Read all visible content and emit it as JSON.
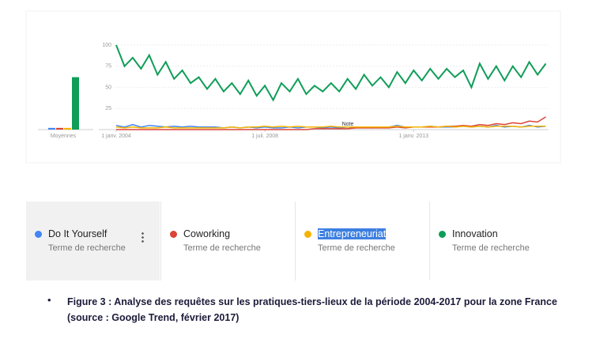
{
  "chart_data": [
    {
      "type": "bar",
      "x_label": "Moyennes",
      "categories": [
        null,
        null,
        null,
        null
      ],
      "values": [
        2,
        2,
        2,
        62
      ],
      "colors": [
        "#4285f4",
        "#db4437",
        "#f4b400",
        "#0f9d58"
      ],
      "ylim": [
        0,
        100
      ]
    },
    {
      "type": "line",
      "annotation": "Note",
      "legend_subtitle": "Terme de recherche",
      "grid": true,
      "ylim": [
        0,
        100
      ],
      "yticks": [
        25,
        50,
        75,
        100
      ],
      "xlim": [
        "2004-01",
        "2017-02"
      ],
      "xticks": [
        {
          "value": "2004-01",
          "label": "1 janv. 2004"
        },
        {
          "value": "2008-07",
          "label": "1 juil. 2008"
        },
        {
          "value": "2013-01",
          "label": "1 janv. 2013"
        }
      ],
      "x": [
        "2004-01",
        "2004-04",
        "2004-07",
        "2004-10",
        "2005-01",
        "2005-04",
        "2005-07",
        "2005-10",
        "2006-01",
        "2006-04",
        "2006-07",
        "2006-10",
        "2007-01",
        "2007-04",
        "2007-07",
        "2007-10",
        "2008-01",
        "2008-04",
        "2008-07",
        "2008-10",
        "2009-01",
        "2009-04",
        "2009-07",
        "2009-10",
        "2010-01",
        "2010-04",
        "2010-07",
        "2010-10",
        "2011-01",
        "2011-04",
        "2011-07",
        "2011-10",
        "2012-01",
        "2012-04",
        "2012-07",
        "2012-10",
        "2013-01",
        "2013-04",
        "2013-07",
        "2013-10",
        "2014-01",
        "2014-04",
        "2014-07",
        "2014-10",
        "2015-01",
        "2015-04",
        "2015-07",
        "2015-10",
        "2016-01",
        "2016-04",
        "2016-07",
        "2016-10",
        "2017-01"
      ],
      "series": [
        {
          "name": "Do It Yourself",
          "color": "#4285f4",
          "values": [
            5,
            3,
            6,
            3,
            5,
            4,
            3,
            4,
            3,
            4,
            3,
            3,
            3,
            2,
            3,
            2,
            3,
            2,
            3,
            2,
            2,
            3,
            2,
            3,
            3,
            2,
            3,
            2,
            3,
            2,
            3,
            2,
            3,
            3,
            5,
            3,
            3,
            3,
            4,
            3,
            3,
            3,
            4,
            3,
            4,
            3,
            5,
            3,
            4,
            3,
            5,
            3,
            4
          ]
        },
        {
          "name": "Coworking",
          "color": "#db4437",
          "values": [
            0,
            0,
            0,
            0,
            0,
            0,
            0,
            0,
            0,
            0,
            0,
            0,
            0,
            0,
            0,
            0,
            0,
            0,
            0,
            0,
            0,
            0,
            0,
            0,
            1,
            1,
            1,
            1,
            1,
            2,
            2,
            2,
            2,
            2,
            3,
            2,
            3,
            3,
            3,
            3,
            4,
            4,
            5,
            4,
            6,
            5,
            7,
            6,
            8,
            7,
            10,
            9,
            15
          ]
        },
        {
          "name": "Entrepreneuriat",
          "color": "#f4b400",
          "values": [
            3,
            2,
            3,
            2,
            2,
            2,
            3,
            2,
            2,
            2,
            2,
            2,
            2,
            2,
            3,
            2,
            3,
            3,
            4,
            3,
            4,
            3,
            4,
            3,
            3,
            3,
            4,
            3,
            3,
            3,
            3,
            3,
            3,
            3,
            4,
            3,
            3,
            3,
            4,
            3,
            4,
            3,
            4,
            3,
            4,
            3,
            4,
            4,
            4,
            3,
            4,
            4,
            4
          ]
        },
        {
          "name": "Innovation",
          "color": "#0f9d58",
          "values": [
            100,
            75,
            85,
            72,
            88,
            65,
            80,
            60,
            70,
            55,
            62,
            48,
            60,
            45,
            55,
            42,
            58,
            40,
            52,
            35,
            55,
            45,
            60,
            42,
            52,
            45,
            55,
            45,
            60,
            48,
            65,
            52,
            62,
            50,
            68,
            55,
            70,
            58,
            72,
            60,
            72,
            62,
            70,
            50,
            78,
            60,
            75,
            58,
            75,
            62,
            80,
            65,
            78
          ]
        }
      ]
    }
  ],
  "caption": "Figure 3 : Analyse des requêtes sur les pratiques-tiers-lieux de  la période 2004-2017 pour la zone France (source : Google Trend, février 2017)"
}
